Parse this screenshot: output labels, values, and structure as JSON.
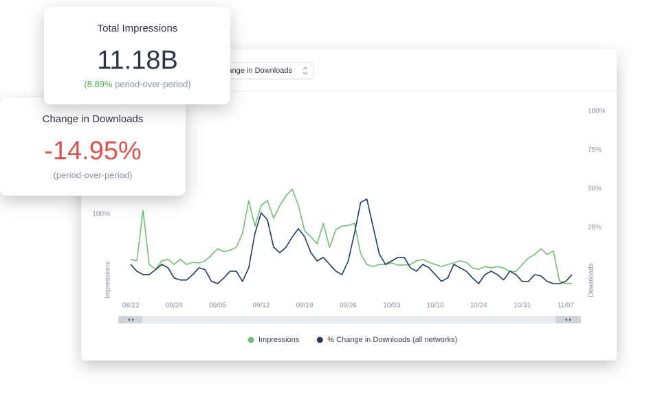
{
  "chart_data": {
    "type": "line",
    "categories": [
      "08/22",
      null,
      null,
      null,
      null,
      null,
      null,
      "08/29",
      null,
      null,
      null,
      null,
      null,
      null,
      "09/05",
      null,
      null,
      null,
      null,
      null,
      null,
      "09/12",
      null,
      null,
      null,
      null,
      null,
      null,
      "09/19",
      null,
      null,
      null,
      null,
      null,
      null,
      "09/26",
      null,
      null,
      null,
      null,
      null,
      null,
      "10/03",
      null,
      null,
      null,
      null,
      null,
      null,
      "10/10",
      null,
      null,
      null,
      null,
      null,
      null,
      "10/24",
      null,
      null,
      null,
      null,
      null,
      null,
      "10/31",
      null,
      null,
      null,
      null,
      null,
      null,
      "11/07",
      null
    ],
    "series": [
      {
        "name": "Impressions",
        "color": "#6cc070",
        "axis": "y",
        "values": [
          36,
          34,
          105,
          29,
          22,
          34,
          36,
          29,
          36,
          29,
          32,
          31,
          34,
          42,
          51,
          47,
          49,
          53,
          73,
          119,
          83,
          112,
          119,
          94,
          112,
          126,
          135,
          112,
          76,
          68,
          58,
          87,
          53,
          78,
          83,
          84,
          87,
          44,
          29,
          26,
          29,
          29,
          31,
          28,
          28,
          29,
          34,
          36,
          32,
          29,
          26,
          29,
          31,
          34,
          32,
          24,
          22,
          26,
          24,
          26,
          24,
          19,
          19,
          29,
          38,
          43,
          51,
          43,
          48,
          5,
          2,
          2
        ]
      },
      {
        "name": "% Change in Downloads (all networks)",
        "color": "#1f3a5c",
        "axis": "y2",
        "values": [
          1.3,
          -3.1,
          -5.3,
          -5.3,
          -2.2,
          1.3,
          -0.9,
          -7.5,
          -8.8,
          -8.8,
          -5.3,
          -0.9,
          -2.2,
          -9.7,
          -11.1,
          -7.5,
          -3.1,
          -3.1,
          -9.7,
          -0.9,
          21.2,
          34.5,
          30.1,
          12.4,
          8.8,
          12.4,
          19.0,
          24.3,
          19.0,
          8.8,
          3.5,
          5.8,
          1.3,
          -3.1,
          -5.3,
          3.5,
          21.2,
          41.2,
          43.4,
          25.7,
          8.0,
          1.3,
          3.5,
          5.8,
          5.8,
          -0.9,
          -3.1,
          1.3,
          -0.9,
          -5.3,
          -9.7,
          -7.5,
          1.3,
          -0.9,
          -3.1,
          -7.5,
          -11.1,
          -5.3,
          -3.1,
          -5.3,
          -8.8,
          -3.1,
          -5.3,
          -9.7,
          -9.7,
          -5.3,
          -6.2,
          -9.7,
          -11.1,
          -11.1,
          -9.7,
          -5.3
        ]
      }
    ],
    "ylim": [
      0,
      245
    ],
    "yticks": [
      {
        "value": 100,
        "label": "100%"
      }
    ],
    "y2lim": [
      -12,
      100
    ],
    "y2ticks": [
      {
        "value": 25,
        "label": "25%"
      },
      {
        "value": 50,
        "label": "50%"
      },
      {
        "value": 75,
        "label": "75%"
      },
      {
        "value": 100,
        "label": "100%"
      }
    ],
    "ylabel": "Impressions",
    "y2label": "Downloads",
    "legend": "bottom",
    "grid": false
  },
  "dropdown": {
    "label": "% Change in Downloads"
  },
  "cards": [
    {
      "title": "Total Impressions",
      "value": "11.18B",
      "delta": "(8.89%",
      "note": " period-over-period)"
    },
    {
      "title": "Change in Downloads",
      "value": "-14.95%",
      "note": "(period-over-period)"
    }
  ]
}
